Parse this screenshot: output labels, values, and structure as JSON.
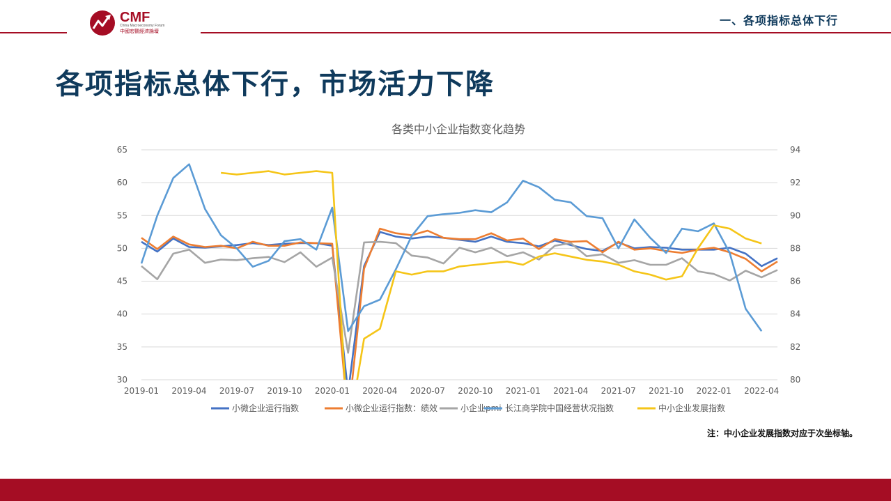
{
  "header": {
    "logo_text": "CMF",
    "logo_subtext_en": "China Macroeconomy Forum",
    "logo_subtext_cn": "中國宏觀經濟論壇",
    "section_label": "一、各项指标总体下行"
  },
  "page_title": "各项指标总体下行，市场活力下降",
  "footnote": "注：中小企业发展指数对应于次坐标轴。",
  "colors": {
    "brand_red": "#a50d24",
    "title_navy": "#0f3a5c"
  },
  "chart_data": {
    "type": "line",
    "title": "各类中小企业指数变化趋势",
    "xlabel": "",
    "ylabel": "",
    "ylim": [
      30,
      65
    ],
    "ylim_secondary": [
      80,
      94
    ],
    "y_ticks": [
      30,
      35,
      40,
      45,
      50,
      55,
      60,
      65
    ],
    "y2_ticks": [
      80,
      82,
      84,
      86,
      88,
      90,
      92,
      94
    ],
    "x_tick_labels": [
      "2019-01",
      "2019-04",
      "2019-07",
      "2019-10",
      "2020-01",
      "2020-04",
      "2020-07",
      "2020-10",
      "2021-01",
      "2021-04",
      "2021-07",
      "2021-10",
      "2022-01",
      "2022-04"
    ],
    "grid": "horizontal",
    "legend_position": "bottom",
    "x": [
      "2019-01",
      "2019-02",
      "2019-03",
      "2019-04",
      "2019-05",
      "2019-06",
      "2019-07",
      "2019-08",
      "2019-09",
      "2019-10",
      "2019-11",
      "2019-12",
      "2020-01",
      "2020-02",
      "2020-03",
      "2020-04",
      "2020-05",
      "2020-06",
      "2020-07",
      "2020-08",
      "2020-09",
      "2020-10",
      "2020-11",
      "2020-12",
      "2021-01",
      "2021-02",
      "2021-03",
      "2021-04",
      "2021-05",
      "2021-06",
      "2021-07",
      "2021-08",
      "2021-09",
      "2021-10",
      "2021-11",
      "2021-12",
      "2022-01",
      "2022-02",
      "2022-03",
      "2022-04",
      "2022-05"
    ],
    "series": [
      {
        "name": "小微企业运行指数",
        "color": "#4472c4",
        "axis": "primary",
        "values": [
          51.0,
          49.5,
          51.5,
          50.2,
          50.1,
          50.3,
          50.5,
          50.8,
          50.5,
          50.7,
          50.8,
          50.8,
          50.4,
          28.0,
          47.3,
          52.5,
          51.8,
          51.5,
          51.8,
          51.6,
          51.3,
          51.0,
          51.8,
          51.0,
          50.8,
          50.3,
          51.2,
          50.5,
          49.9,
          49.6,
          50.9,
          50.0,
          50.2,
          50.1,
          49.8,
          49.8,
          49.8,
          50.1,
          49.2,
          47.3,
          48.5
        ]
      },
      {
        "name": "小微企业运行指数：绩效",
        "color": "#ed7d31",
        "axis": "primary",
        "values": [
          51.6,
          49.9,
          51.8,
          50.6,
          50.2,
          50.4,
          50.0,
          51.0,
          50.4,
          50.4,
          50.9,
          50.8,
          50.7,
          24.0,
          46.9,
          53.0,
          52.3,
          52.0,
          52.7,
          51.6,
          51.4,
          51.4,
          52.3,
          51.2,
          51.5,
          49.9,
          51.4,
          51.0,
          51.1,
          49.4,
          51.0,
          49.8,
          50.0,
          49.6,
          49.3,
          49.8,
          50.1,
          49.4,
          48.4,
          46.5,
          48.0
        ]
      },
      {
        "name": "小企业pmi",
        "color": "#a5a5a5",
        "axis": "primary",
        "values": [
          47.3,
          45.3,
          49.2,
          49.8,
          47.8,
          48.3,
          48.2,
          48.5,
          48.7,
          47.9,
          49.4,
          47.2,
          48.6,
          34.1,
          50.9,
          51.0,
          50.8,
          48.9,
          48.6,
          47.7,
          50.1,
          49.4,
          50.1,
          48.8,
          49.4,
          48.3,
          50.4,
          50.8,
          48.8,
          49.1,
          47.8,
          48.2,
          47.5,
          47.5,
          48.5,
          46.5,
          46.1,
          45.1,
          46.6,
          45.6,
          46.7
        ]
      },
      {
        "name": "长江商学院中国经营状况指数",
        "color": "#5b9bd5",
        "axis": "primary",
        "values": [
          47.7,
          55.0,
          60.7,
          62.8,
          56.0,
          52.0,
          50.0,
          47.2,
          48.1,
          51.1,
          51.4,
          49.8,
          56.2,
          37.4,
          41.2,
          42.2,
          46.8,
          51.9,
          54.9,
          55.2,
          55.4,
          55.8,
          55.5,
          57.0,
          60.3,
          59.3,
          57.4,
          57.0,
          54.9,
          54.6,
          50.0,
          54.4,
          51.6,
          49.3,
          53.0,
          52.6,
          53.8,
          49.3,
          40.8,
          37.4,
          null
        ]
      },
      {
        "name": "中小企业发展指数",
        "color": "#f5c518",
        "axis": "secondary",
        "values": [
          null,
          null,
          null,
          null,
          null,
          92.6,
          92.5,
          92.6,
          92.7,
          92.5,
          92.6,
          92.7,
          92.6,
          76.7,
          82.5,
          83.1,
          86.6,
          86.4,
          86.6,
          86.6,
          86.9,
          87.0,
          87.1,
          87.2,
          87.0,
          87.5,
          87.7,
          87.5,
          87.3,
          87.2,
          87.0,
          86.6,
          86.4,
          86.1,
          86.3,
          88.0,
          89.4,
          89.2,
          88.6,
          88.3,
          null
        ]
      }
    ]
  }
}
